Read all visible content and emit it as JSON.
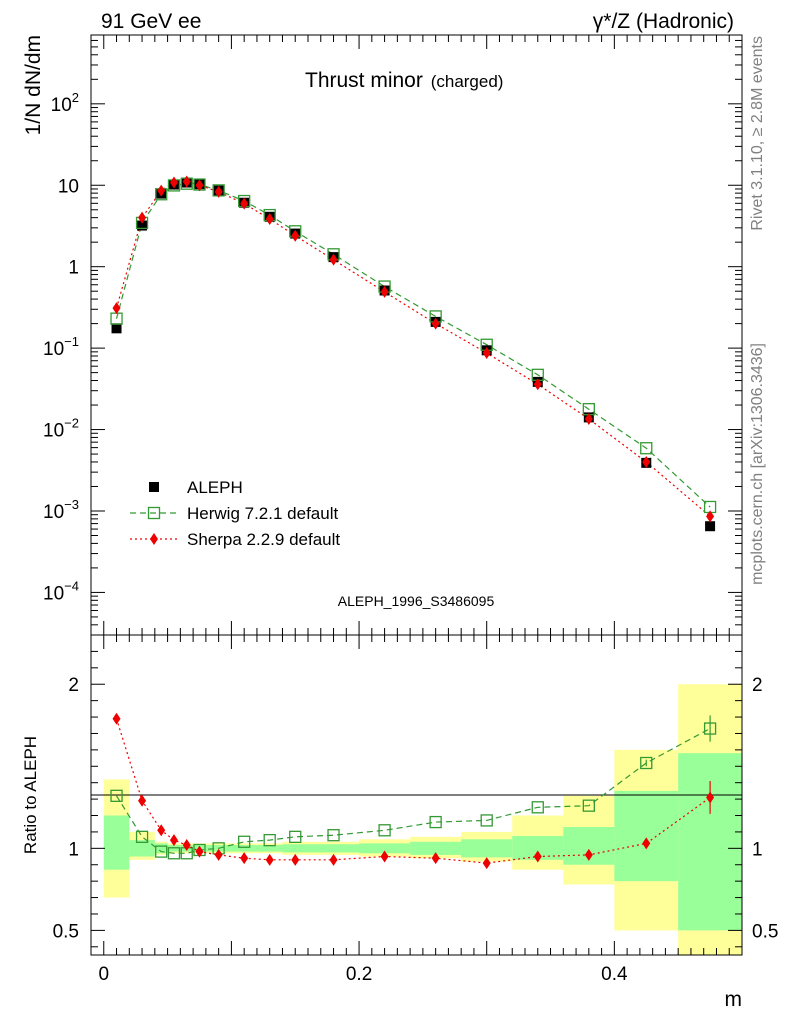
{
  "header": {
    "left": "91 GeV ee",
    "right": "γ*/Z (Hadronic)"
  },
  "chart_data": {
    "type": "scatter",
    "title": "Thrust minor",
    "title_suffix": "(charged)",
    "xlabel": "m",
    "ylabel": "1/N dN/dm",
    "ratio_ylabel": "Ratio to ALEPH",
    "analysis": "ALEPH_1996_S3486095",
    "side_top": "Rivet 3.1.10, ≥ 2.8M events",
    "side_bottom": "mcplots.cern.ch [arXiv:1306.3436]",
    "xlim": [
      -0.01,
      0.5
    ],
    "ylim": [
      3e-05,
      700
    ],
    "yscale": "log",
    "ratio_ylim": [
      0.35,
      2.3
    ],
    "xticks": [
      {
        "v": 0,
        "label": "0"
      },
      {
        "v": 0.2,
        "label": "0.2"
      },
      {
        "v": 0.4,
        "label": "0.4"
      }
    ],
    "yticks": [
      {
        "v": 0.0001,
        "base": "10",
        "exp": "−4"
      },
      {
        "v": 0.001,
        "base": "10",
        "exp": "−3"
      },
      {
        "v": 0.01,
        "base": "10",
        "exp": "−2"
      },
      {
        "v": 0.1,
        "base": "10",
        "exp": "−1"
      },
      {
        "v": 1,
        "base": "1",
        "exp": ""
      },
      {
        "v": 10,
        "base": "10",
        "exp": ""
      },
      {
        "v": 100,
        "base": "10",
        "exp": "2"
      }
    ],
    "ratio_yticks": [
      {
        "v": 0.5,
        "label": "0.5"
      },
      {
        "v": 1,
        "label": "1"
      },
      {
        "v": 2,
        "label": "2"
      }
    ],
    "bin_edges": [
      0,
      0.02,
      0.04,
      0.05,
      0.06,
      0.07,
      0.08,
      0.1,
      0.12,
      0.14,
      0.16,
      0.2,
      0.24,
      0.28,
      0.32,
      0.36,
      0.4,
      0.45,
      0.5
    ],
    "x": [
      0.01,
      0.03,
      0.045,
      0.055,
      0.065,
      0.075,
      0.09,
      0.11,
      0.13,
      0.15,
      0.18,
      0.22,
      0.26,
      0.3,
      0.34,
      0.38,
      0.425,
      0.475
    ],
    "band_inner": [
      [
        0.87,
        1.2
      ],
      [
        0.95,
        1.05
      ],
      [
        0.97,
        1.03
      ],
      [
        0.98,
        1.02
      ],
      [
        0.98,
        1.02
      ],
      [
        0.98,
        1.02
      ],
      [
        0.98,
        1.02
      ],
      [
        0.98,
        1.02
      ],
      [
        0.98,
        1.02
      ],
      [
        0.975,
        1.025
      ],
      [
        0.975,
        1.025
      ],
      [
        0.97,
        1.03
      ],
      [
        0.96,
        1.04
      ],
      [
        0.945,
        1.055
      ],
      [
        0.93,
        1.075
      ],
      [
        0.9,
        1.13
      ],
      [
        0.8,
        1.35
      ],
      [
        0.5,
        1.58
      ]
    ],
    "band_outer": [
      [
        0.7,
        1.42
      ],
      [
        0.93,
        1.1
      ],
      [
        0.96,
        1.04
      ],
      [
        0.97,
        1.03
      ],
      [
        0.97,
        1.03
      ],
      [
        0.97,
        1.03
      ],
      [
        0.97,
        1.03
      ],
      [
        0.97,
        1.03
      ],
      [
        0.97,
        1.03
      ],
      [
        0.96,
        1.04
      ],
      [
        0.96,
        1.04
      ],
      [
        0.95,
        1.055
      ],
      [
        0.94,
        1.07
      ],
      [
        0.92,
        1.1
      ],
      [
        0.87,
        1.2
      ],
      [
        0.78,
        1.32
      ],
      [
        0.5,
        1.6
      ],
      [
        0.35,
        2.0
      ]
    ],
    "series": [
      {
        "name": "ALEPH",
        "color": "#000000",
        "marker": "square-filled",
        "values": [
          0.175,
          3.2,
          7.9,
          10.2,
          10.8,
          10.3,
          8.6,
          6.1,
          4.1,
          2.55,
          1.31,
          0.51,
          0.21,
          0.094,
          0.0385,
          0.0141,
          0.0039,
          0.00065
        ]
      },
      {
        "name": "Herwig 7.2.1 default",
        "color": "#339933",
        "marker": "square-open",
        "dash": "6,4",
        "values": [
          0.23,
          3.45,
          7.75,
          9.95,
          10.45,
          10.2,
          8.65,
          6.4,
          4.3,
          2.72,
          1.42,
          0.57,
          0.245,
          0.11,
          0.047,
          0.0178,
          0.0059,
          0.00112
        ],
        "ratio": [
          1.32,
          1.07,
          0.98,
          0.97,
          0.97,
          0.99,
          1.0,
          1.04,
          1.05,
          1.07,
          1.08,
          1.11,
          1.16,
          1.17,
          1.25,
          1.26,
          1.52,
          1.73
        ],
        "ratio_err": [
          0,
          0,
          0,
          0,
          0,
          0,
          0,
          0,
          0,
          0,
          0,
          0,
          0,
          0,
          0,
          0,
          0.02,
          0.08
        ]
      },
      {
        "name": "Sherpa 2.2.9 default",
        "color": "#ee0000",
        "marker": "diamond",
        "dash": "2,3",
        "values": [
          0.31,
          4.0,
          8.6,
          10.8,
          11.1,
          10.0,
          8.3,
          5.95,
          3.85,
          2.4,
          1.22,
          0.49,
          0.2,
          0.087,
          0.036,
          0.0135,
          0.004,
          0.00086
        ],
        "ratio": [
          1.79,
          1.29,
          1.11,
          1.05,
          1.02,
          0.98,
          0.96,
          0.94,
          0.93,
          0.93,
          0.93,
          0.95,
          0.94,
          0.91,
          0.95,
          0.96,
          1.03,
          1.31
        ],
        "ratio_err": [
          0,
          0,
          0,
          0,
          0,
          0,
          0,
          0,
          0,
          0,
          0,
          0,
          0,
          0,
          0,
          0,
          0.03,
          0.1
        ]
      }
    ]
  }
}
